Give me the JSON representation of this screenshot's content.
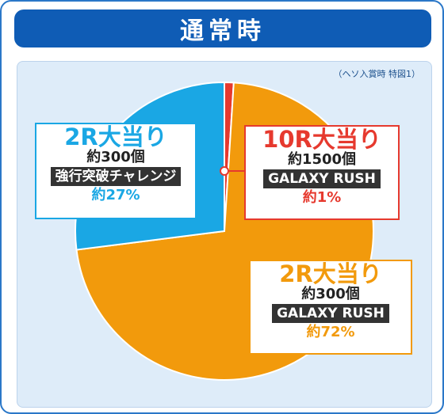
{
  "header": {
    "title": "通常時"
  },
  "source_note": "（ヘソ入賞時 特図1）",
  "colors": {
    "accent": "#0f5cb5",
    "slice_2r_challenge": "#1aa7e4",
    "slice_10r": "#e6392e",
    "slice_2r_rush": "#f29a0c"
  },
  "labels": [
    {
      "name": "2R大当り",
      "count": "約300個",
      "tag": "強行突破チャレンジ",
      "pct": "約27%"
    },
    {
      "name": "10R大当り",
      "count": "約1500個",
      "tag": "GALAXY RUSH",
      "pct": "約1%"
    },
    {
      "name": "2R大当り",
      "count": "約300個",
      "tag": "GALAXY RUSH",
      "pct": "約72%"
    }
  ],
  "chart_data": {
    "type": "pie",
    "title": "通常時",
    "slices": [
      {
        "label": "10R大当り GALAXY RUSH",
        "value": 1,
        "color": "#e6392e"
      },
      {
        "label": "2R大当り GALAXY RUSH",
        "value": 72,
        "color": "#f29a0c"
      },
      {
        "label": "2R大当り 強行突破チャレンジ",
        "value": 27,
        "color": "#1aa7e4"
      }
    ]
  }
}
